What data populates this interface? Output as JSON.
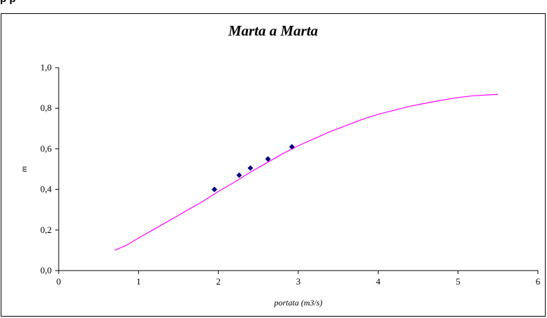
{
  "header_strip": {
    "text": "p                      p"
  },
  "chart_data": {
    "type": "scatter",
    "title": "Marta a Marta",
    "xlabel": "portata (m3/s)",
    "ylabel": "m",
    "xlim": [
      0,
      6
    ],
    "ylim": [
      0,
      1.0
    ],
    "x_ticks": [
      0,
      1,
      2,
      3,
      4,
      5,
      6
    ],
    "x_tick_labels": [
      "0",
      "1",
      "2",
      "3",
      "4",
      "5",
      "6"
    ],
    "y_ticks": [
      0,
      0.2,
      0.4,
      0.6,
      0.8,
      1.0
    ],
    "y_tick_labels": [
      "0,0",
      "0,2",
      "0,4",
      "0,6",
      "0,8",
      "1,0"
    ],
    "grid": false,
    "legend": "none",
    "series": [
      {
        "kind": "line",
        "color": "#ff00ff",
        "x": [
          0.7,
          0.85,
          1.0,
          1.2,
          1.4,
          1.6,
          1.8,
          2.0,
          2.2,
          2.4,
          2.6,
          2.8,
          3.0,
          3.2,
          3.4,
          3.6,
          3.8,
          4.0,
          4.2,
          4.4,
          4.6,
          4.8,
          5.0,
          5.2,
          5.5
        ],
        "y": [
          0.1,
          0.125,
          0.16,
          0.205,
          0.25,
          0.295,
          0.34,
          0.39,
          0.435,
          0.485,
          0.53,
          0.575,
          0.615,
          0.65,
          0.685,
          0.715,
          0.745,
          0.77,
          0.79,
          0.81,
          0.825,
          0.84,
          0.853,
          0.862,
          0.868
        ]
      },
      {
        "kind": "points",
        "color": "#000080",
        "marker": "diamond",
        "x": [
          1.95,
          2.26,
          2.4,
          2.62,
          2.92
        ],
        "y": [
          0.4,
          0.47,
          0.505,
          0.55,
          0.61
        ]
      }
    ]
  }
}
